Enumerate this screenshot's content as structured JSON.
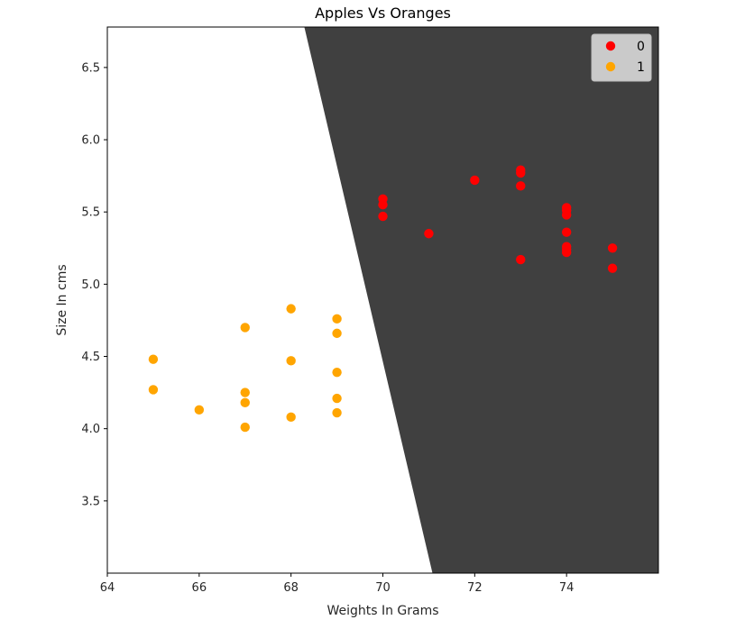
{
  "chart_data": {
    "type": "scatter",
    "title": "Apples Vs Oranges",
    "xlabel": "Weights In Grams",
    "ylabel": "Size In cms",
    "xlim": [
      64,
      76
    ],
    "ylim": [
      3.0,
      6.78
    ],
    "xticks": [
      64,
      66,
      68,
      70,
      72,
      74
    ],
    "yticks": [
      3.5,
      4.0,
      4.5,
      5.0,
      5.5,
      6.0,
      6.5
    ],
    "grid": false,
    "legend_position": "upper-right",
    "decision_boundary": {
      "fill_color": "#404040",
      "line_points": [
        [
          68.29,
          6.78
        ],
        [
          71.08,
          3.0
        ]
      ],
      "class_region": "0"
    },
    "series": [
      {
        "name": "0",
        "color": "#ff0000",
        "points": [
          [
            70,
            5.59
          ],
          [
            70,
            5.55
          ],
          [
            70,
            5.47
          ],
          [
            71,
            5.35
          ],
          [
            72,
            5.72
          ],
          [
            73,
            5.79
          ],
          [
            73,
            5.77
          ],
          [
            73,
            5.68
          ],
          [
            73,
            5.17
          ],
          [
            74,
            5.53
          ],
          [
            74,
            5.51
          ],
          [
            74,
            5.48
          ],
          [
            74,
            5.36
          ],
          [
            74,
            5.26
          ],
          [
            74,
            5.24
          ],
          [
            74,
            5.22
          ],
          [
            75,
            5.25
          ],
          [
            75,
            5.11
          ]
        ]
      },
      {
        "name": "1",
        "color": "#ffa500",
        "points": [
          [
            65,
            4.48
          ],
          [
            65,
            4.27
          ],
          [
            66,
            4.13
          ],
          [
            67,
            4.7
          ],
          [
            67,
            4.25
          ],
          [
            67,
            4.18
          ],
          [
            67,
            4.01
          ],
          [
            68,
            4.83
          ],
          [
            68,
            4.47
          ],
          [
            68,
            4.08
          ],
          [
            69,
            4.76
          ],
          [
            69,
            4.66
          ],
          [
            69,
            4.39
          ],
          [
            69,
            4.21
          ],
          [
            69,
            4.11
          ]
        ]
      }
    ]
  }
}
